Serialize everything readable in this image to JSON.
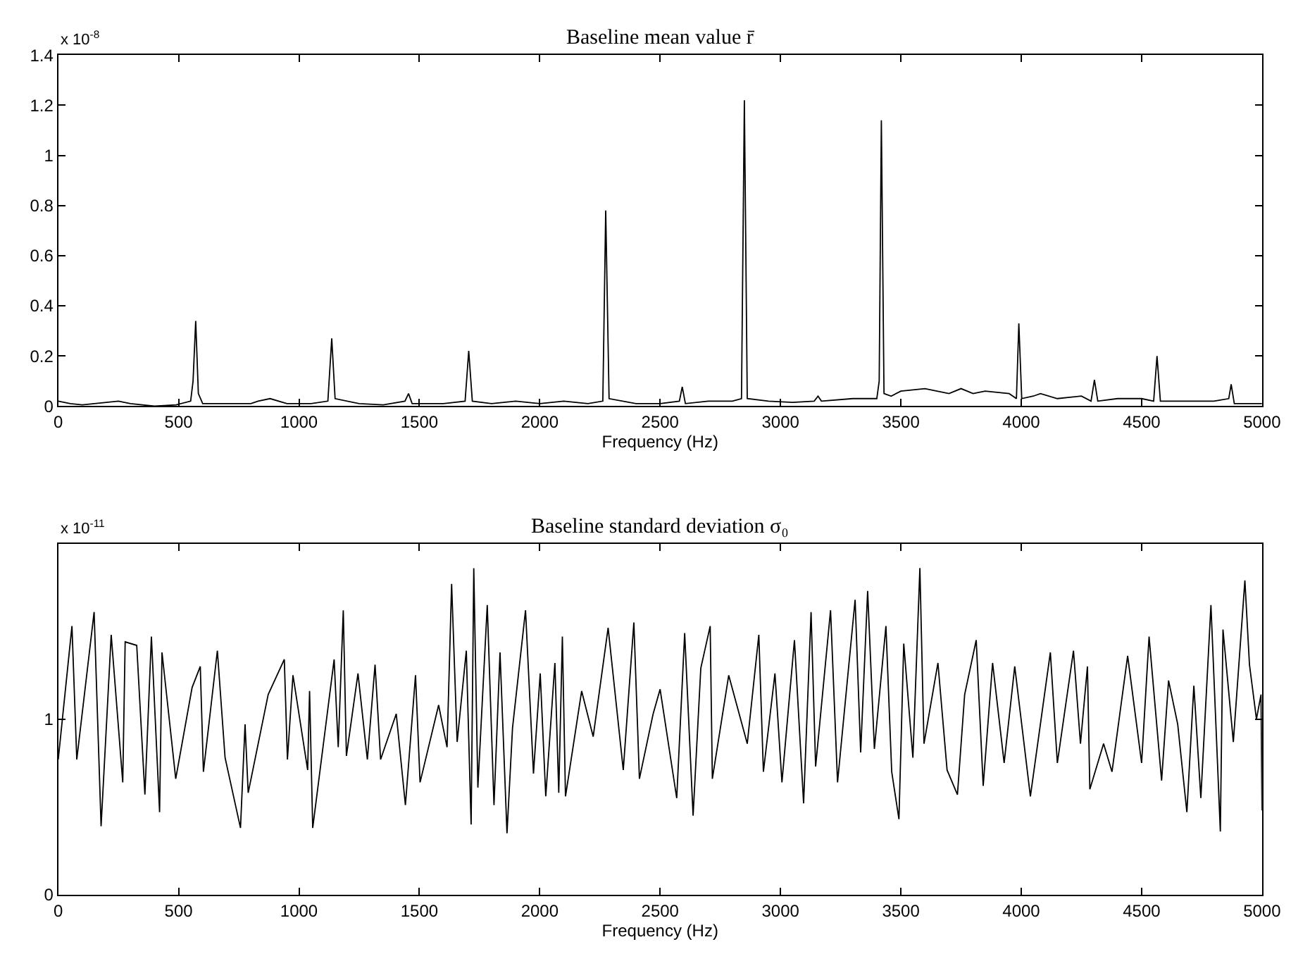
{
  "chart_data": [
    {
      "type": "line",
      "title": "Baseline mean value r̄",
      "xlabel": "Frequency (Hz)",
      "annotations": [
        "x 10$^{-8}$"
      ],
      "xlim": [
        0,
        5000
      ],
      "xticks": [
        0,
        500,
        1000,
        1500,
        2000,
        2500,
        3000,
        3500,
        4000,
        4500,
        5000
      ],
      "ylim": [
        0,
        1.4
      ],
      "yticks": [
        0,
        0.2,
        0.4,
        0.6,
        0.8,
        1,
        1.2,
        1.4
      ],
      "series": [
        {
          "color": "#000000",
          "x": [
            0,
            50,
            100,
            200,
            250,
            300,
            400,
            490,
            550,
            560,
            571,
            582,
            600,
            700,
            800,
            830,
            880,
            950,
            1050,
            1120,
            1136,
            1150,
            1250,
            1350,
            1440,
            1455,
            1470,
            1600,
            1690,
            1705,
            1720,
            1800,
            1900,
            2000,
            2100,
            2200,
            2262,
            2274,
            2288,
            2400,
            2500,
            2580,
            2592,
            2605,
            2700,
            2800,
            2838,
            2850,
            2862,
            2950,
            3050,
            3140,
            3156,
            3170,
            3300,
            3400,
            3410,
            3419,
            3430,
            3460,
            3500,
            3600,
            3700,
            3750,
            3800,
            3850,
            3950,
            3980,
            3990,
            4002,
            4050,
            4080,
            4150,
            4250,
            4290,
            4304,
            4318,
            4400,
            4500,
            4550,
            4564,
            4578,
            4700,
            4800,
            4862,
            4872,
            4885,
            5000
          ],
          "values": [
            0.02,
            0.01,
            0.005,
            0.015,
            0.02,
            0.01,
            0.0,
            0.005,
            0.02,
            0.1,
            0.34,
            0.05,
            0.01,
            0.01,
            0.01,
            0.02,
            0.03,
            0.01,
            0.01,
            0.02,
            0.27,
            0.03,
            0.01,
            0.005,
            0.02,
            0.05,
            0.01,
            0.01,
            0.02,
            0.22,
            0.02,
            0.01,
            0.02,
            0.01,
            0.02,
            0.01,
            0.02,
            0.78,
            0.03,
            0.01,
            0.01,
            0.02,
            0.077,
            0.01,
            0.02,
            0.02,
            0.03,
            1.22,
            0.03,
            0.02,
            0.015,
            0.02,
            0.04,
            0.02,
            0.03,
            0.03,
            0.1,
            1.14,
            0.05,
            0.04,
            0.06,
            0.07,
            0.05,
            0.07,
            0.05,
            0.06,
            0.05,
            0.03,
            0.33,
            0.03,
            0.04,
            0.05,
            0.03,
            0.04,
            0.02,
            0.105,
            0.02,
            0.03,
            0.03,
            0.02,
            0.2,
            0.02,
            0.02,
            0.02,
            0.03,
            0.087,
            0.01,
            0.01
          ]
        }
      ]
    },
    {
      "type": "line",
      "title": "Baseline standard deviation σ₀",
      "xlabel": "Frequency (Hz)",
      "annotations": [
        "x 10$^{-11}$"
      ],
      "xlim": [
        0,
        5000
      ],
      "xticks": [
        0,
        500,
        1000,
        1500,
        2000,
        2500,
        3000,
        3500,
        4000,
        4500,
        5000
      ],
      "ylim": [
        0,
        2
      ],
      "yticks": [
        0,
        1
      ],
      "series": [
        {
          "color": "#000000",
          "x": [
            0,
            57,
            77,
            149,
            178,
            220,
            268,
            278,
            326,
            360,
            387,
            421,
            431,
            488,
            556,
            590,
            603,
            661,
            693,
            757,
            776,
            789,
            872,
            939,
            952,
            975,
            1036,
            1044,
            1057,
            1146,
            1163,
            1184,
            1197,
            1245,
            1284,
            1316,
            1339,
            1404,
            1442,
            1484,
            1503,
            1580,
            1615,
            1634,
            1657,
            1695,
            1715,
            1726,
            1743,
            1782,
            1810,
            1835,
            1864,
            1887,
            1941,
            1974,
            2002,
            2025,
            2063,
            2079,
            2094,
            2107,
            2174,
            2222,
            2284,
            2347,
            2391,
            2414,
            2471,
            2500,
            2569,
            2602,
            2637,
            2669,
            2708,
            2717,
            2785,
            2862,
            2910,
            2929,
            2977,
            3006,
            3058,
            3096,
            3127,
            3146,
            3208,
            3237,
            3310,
            3333,
            3362,
            3390,
            3438,
            3462,
            3492,
            3512,
            3550,
            3579,
            3596,
            3654,
            3692,
            3735,
            3765,
            3813,
            3842,
            3881,
            3929,
            3973,
            4038,
            4121,
            4150,
            4217,
            4246,
            4275,
            4285,
            4342,
            4377,
            4442,
            4500,
            4531,
            4583,
            4612,
            4650,
            4688,
            4717,
            4746,
            4788,
            4827,
            4838,
            4881,
            4929,
            4948,
            4977,
            4996,
            5000
          ],
          "values": [
            0.77,
            1.53,
            0.77,
            1.61,
            0.39,
            1.48,
            0.64,
            1.44,
            1.42,
            0.57,
            1.47,
            0.47,
            1.38,
            0.66,
            1.18,
            1.3,
            0.7,
            1.39,
            0.78,
            0.38,
            0.97,
            0.58,
            1.14,
            1.34,
            0.77,
            1.25,
            0.71,
            1.16,
            0.38,
            1.34,
            0.84,
            1.62,
            0.79,
            1.26,
            0.77,
            1.31,
            0.77,
            1.03,
            0.51,
            1.25,
            0.64,
            1.08,
            0.84,
            1.77,
            0.87,
            1.39,
            0.4,
            1.86,
            0.61,
            1.65,
            0.51,
            1.38,
            0.35,
            0.95,
            1.62,
            0.69,
            1.26,
            0.56,
            1.32,
            0.58,
            1.47,
            0.56,
            1.16,
            0.9,
            1.52,
            0.71,
            1.55,
            0.66,
            1.03,
            1.17,
            0.55,
            1.49,
            0.45,
            1.29,
            1.53,
            0.66,
            1.25,
            0.86,
            1.48,
            0.7,
            1.26,
            0.64,
            1.45,
            0.52,
            1.61,
            0.73,
            1.62,
            0.64,
            1.68,
            0.81,
            1.73,
            0.83,
            1.53,
            0.7,
            0.43,
            1.43,
            0.78,
            1.86,
            0.86,
            1.32,
            0.71,
            0.57,
            1.14,
            1.45,
            0.62,
            1.32,
            0.75,
            1.3,
            0.56,
            1.38,
            0.75,
            1.39,
            0.86,
            1.3,
            0.6,
            0.86,
            0.7,
            1.36,
            0.75,
            1.47,
            0.65,
            1.22,
            0.97,
            0.47,
            1.19,
            0.55,
            1.65,
            0.36,
            1.51,
            0.87,
            1.79,
            1.31,
            1.0,
            1.14,
            0.48
          ]
        }
      ]
    }
  ]
}
